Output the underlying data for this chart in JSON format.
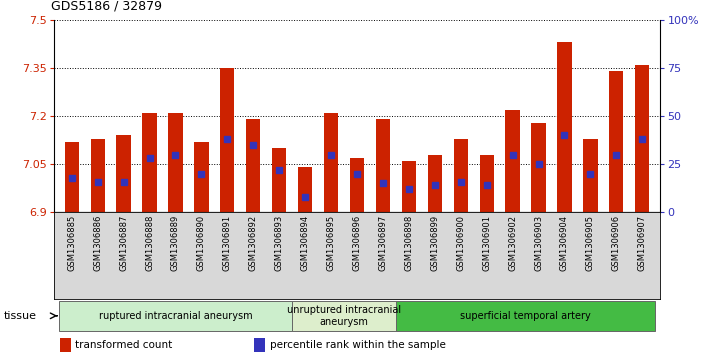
{
  "title": "GDS5186 / 32879",
  "samples": [
    "GSM1306885",
    "GSM1306886",
    "GSM1306887",
    "GSM1306888",
    "GSM1306889",
    "GSM1306890",
    "GSM1306891",
    "GSM1306892",
    "GSM1306893",
    "GSM1306894",
    "GSM1306895",
    "GSM1306896",
    "GSM1306897",
    "GSM1306898",
    "GSM1306899",
    "GSM1306900",
    "GSM1306901",
    "GSM1306902",
    "GSM1306903",
    "GSM1306904",
    "GSM1306905",
    "GSM1306906",
    "GSM1306907"
  ],
  "bar_heights": [
    7.12,
    7.13,
    7.14,
    7.21,
    7.21,
    7.12,
    7.35,
    7.19,
    7.1,
    7.04,
    7.21,
    7.07,
    7.19,
    7.06,
    7.08,
    7.13,
    7.08,
    7.22,
    7.18,
    7.43,
    7.13,
    7.34,
    7.36
  ],
  "percentile_ranks": [
    18,
    16,
    16,
    28,
    30,
    20,
    38,
    35,
    22,
    8,
    30,
    20,
    15,
    12,
    14,
    16,
    14,
    30,
    25,
    40,
    20,
    30,
    38
  ],
  "ylim_left": [
    6.9,
    7.5
  ],
  "ylim_right": [
    0,
    100
  ],
  "yticks_left": [
    6.9,
    7.05,
    7.2,
    7.35,
    7.5
  ],
  "yticks_right": [
    0,
    25,
    50,
    75,
    100
  ],
  "ytick_labels_right": [
    "0",
    "25",
    "50",
    "75",
    "100%"
  ],
  "bar_color": "#cc2200",
  "marker_color": "#3333bb",
  "plot_bg": "#ffffff",
  "xlabels_bg": "#d8d8d8",
  "groups": [
    {
      "label": "ruptured intracranial aneurysm",
      "start": 0,
      "end": 9,
      "color": "#cceecc"
    },
    {
      "label": "unruptured intracranial\naneurysm",
      "start": 9,
      "end": 13,
      "color": "#ddeecc"
    },
    {
      "label": "superficial temporal artery",
      "start": 13,
      "end": 23,
      "color": "#44bb44"
    }
  ],
  "tissue_label": "tissue",
  "legend_items": [
    {
      "label": "transformed count",
      "color": "#cc2200"
    },
    {
      "label": "percentile rank within the sample",
      "color": "#3333bb"
    }
  ]
}
